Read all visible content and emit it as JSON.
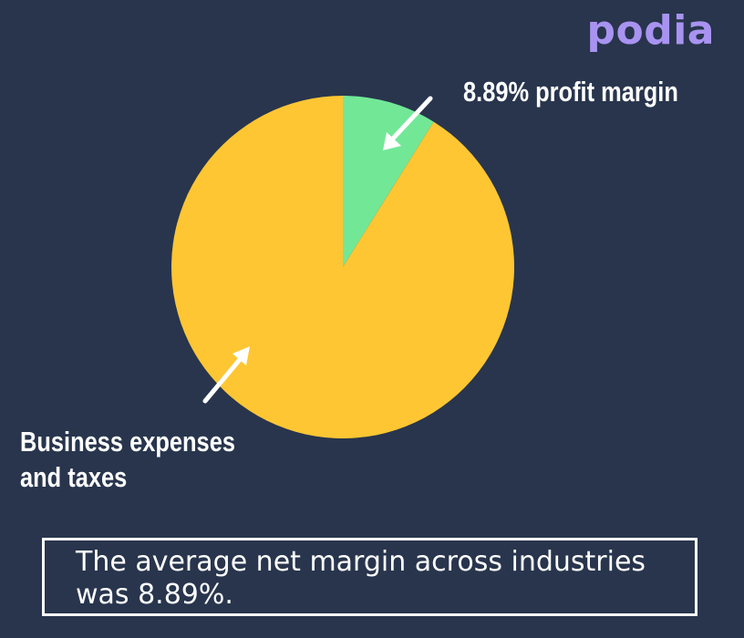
{
  "brand": {
    "logo_text": "podia",
    "logo_color": "#A993F1"
  },
  "background_color": "#28354D",
  "chart_data": {
    "type": "pie",
    "slices": [
      {
        "label": "8.89% profit margin",
        "value": 8.89,
        "color": "#72E897"
      },
      {
        "label": "Business expenses and taxes",
        "value": 91.11,
        "color": "#FFC633"
      }
    ],
    "legend": "none",
    "annotations": [
      {
        "text": "8.89% profit margin",
        "points_to": "8.89% profit margin"
      },
      {
        "text": "Business expenses and taxes",
        "points_to": "Business expenses and taxes"
      }
    ]
  },
  "caption": {
    "text": "The average net margin across industries was 8.89%."
  }
}
